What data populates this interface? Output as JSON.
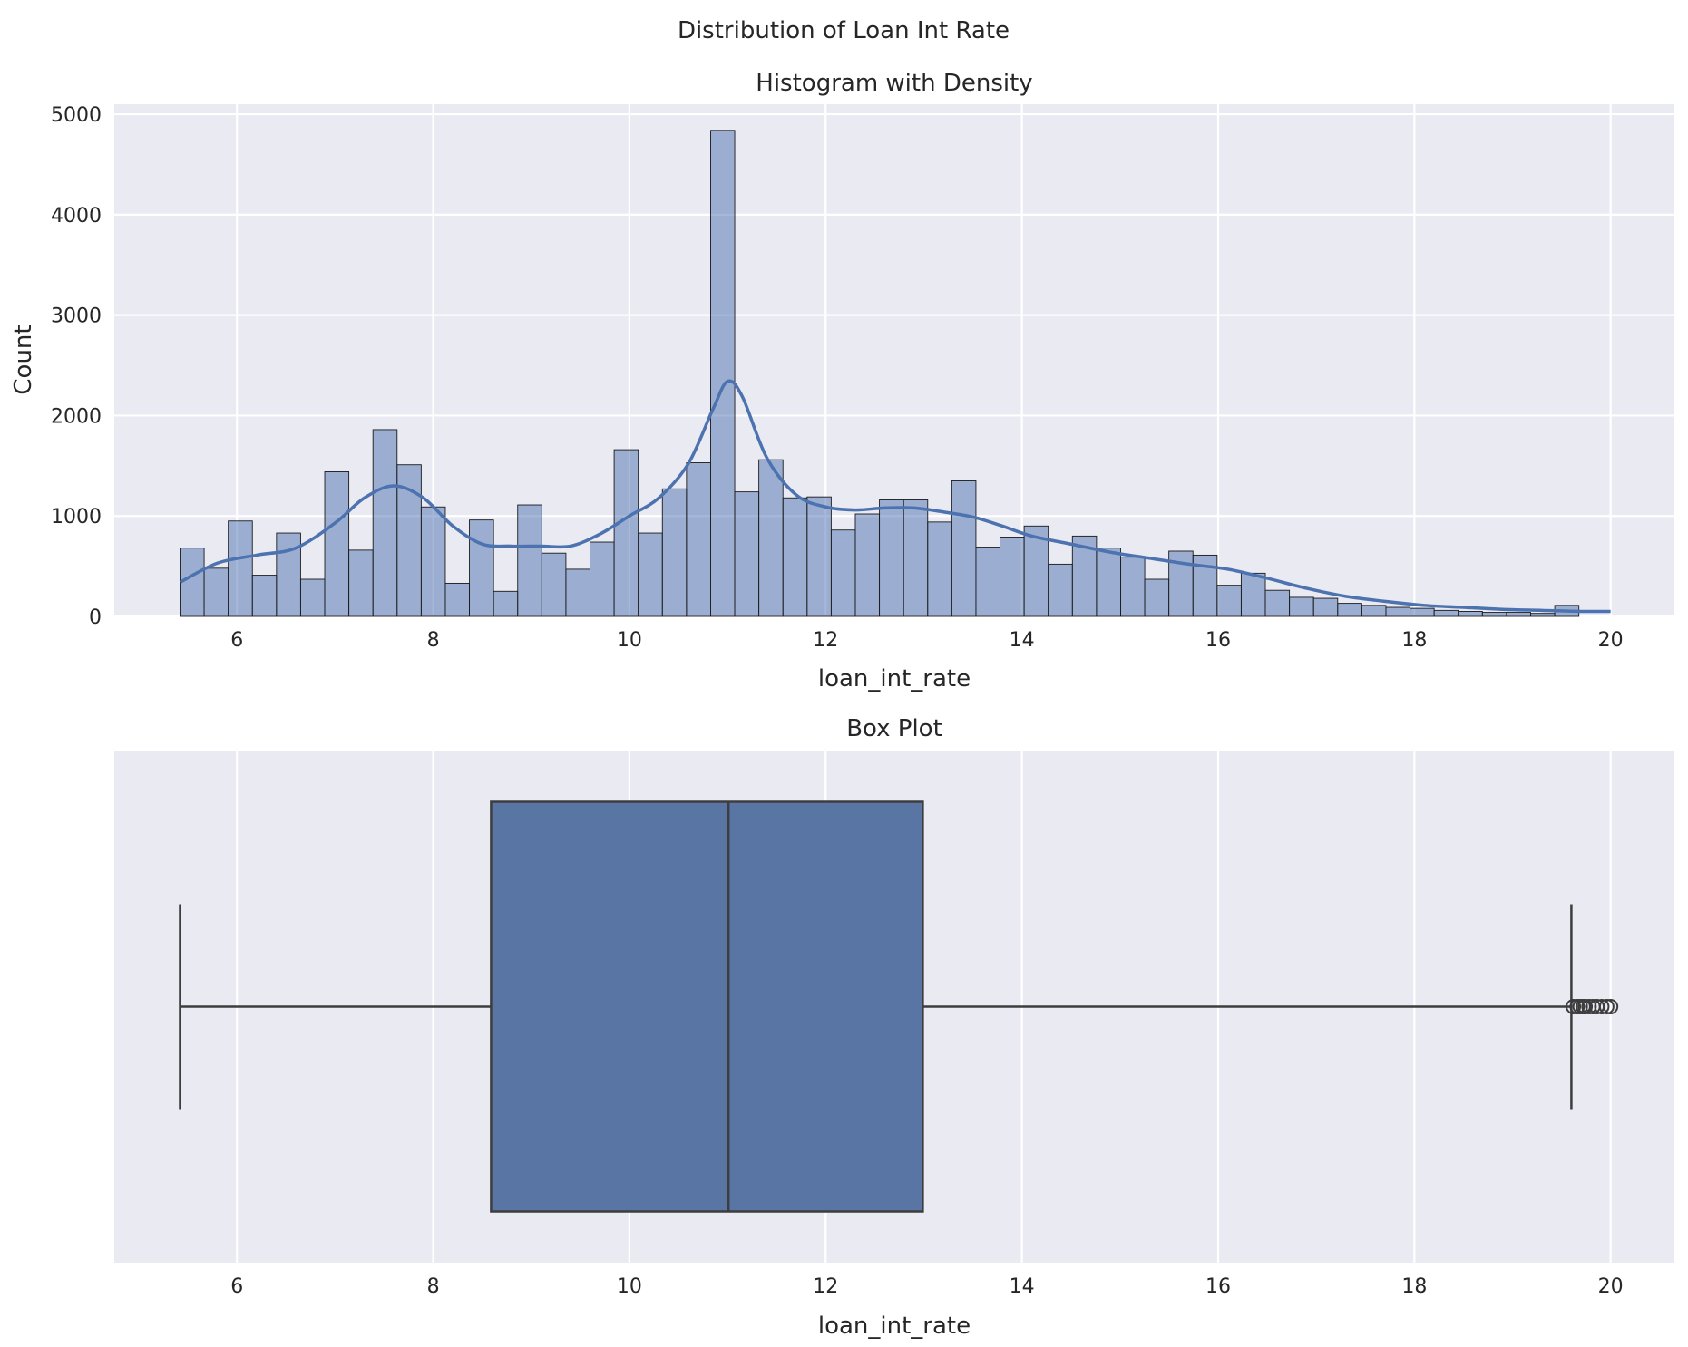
{
  "figure": {
    "suptitle": "Distribution of Loan Int Rate"
  },
  "chart_data": [
    {
      "type": "bar",
      "title": "Histogram with Density",
      "xlabel": "loan_int_rate",
      "ylabel": "Count",
      "xlim": [
        4.75,
        20.65
      ],
      "ylim": [
        0,
        5100
      ],
      "xticks": [
        6,
        8,
        10,
        12,
        14,
        16,
        18,
        20
      ],
      "yticks": [
        0,
        1000,
        2000,
        3000,
        4000,
        5000
      ],
      "grid": true,
      "bin_start": 5.42,
      "bin_width": 0.2458,
      "values": [
        680,
        480,
        950,
        410,
        830,
        370,
        1440,
        660,
        1860,
        1510,
        1090,
        330,
        960,
        250,
        1110,
        630,
        470,
        740,
        1660,
        830,
        1270,
        1530,
        4840,
        1240,
        1560,
        1180,
        1190,
        860,
        1020,
        1160,
        1160,
        940,
        1350,
        690,
        790,
        900,
        520,
        800,
        680,
        590,
        370,
        650,
        610,
        310,
        430,
        260,
        190,
        180,
        130,
        110,
        90,
        80,
        60,
        50,
        40,
        40,
        30,
        110
      ],
      "density_curve": {
        "x": [
          5.42,
          5.8,
          6.2,
          6.6,
          7.0,
          7.3,
          7.6,
          7.9,
          8.2,
          8.5,
          8.8,
          9.1,
          9.4,
          9.7,
          10.0,
          10.3,
          10.6,
          10.85,
          11.0,
          11.15,
          11.4,
          11.7,
          12.0,
          12.3,
          12.6,
          12.9,
          13.2,
          13.5,
          13.8,
          14.1,
          14.5,
          14.9,
          15.3,
          15.7,
          16.1,
          16.5,
          16.9,
          17.3,
          17.7,
          18.1,
          18.5,
          18.9,
          19.3,
          19.7,
          20.0
        ],
        "y": [
          340,
          530,
          610,
          680,
          930,
          1180,
          1300,
          1180,
          900,
          720,
          700,
          700,
          700,
          820,
          1000,
          1180,
          1520,
          2060,
          2340,
          2190,
          1580,
          1210,
          1090,
          1060,
          1080,
          1080,
          1040,
          990,
          900,
          800,
          720,
          640,
          580,
          520,
          470,
          380,
          280,
          200,
          150,
          110,
          90,
          70,
          60,
          50,
          50
        ]
      },
      "colors": {
        "bar": "#4c72b0",
        "curve": "#4c72b0"
      }
    },
    {
      "type": "box",
      "title": "Box Plot",
      "xlabel": "loan_int_rate",
      "xlim": [
        4.75,
        20.65
      ],
      "xticks": [
        6,
        8,
        10,
        12,
        14,
        16,
        18,
        20
      ],
      "grid": true,
      "stats": {
        "whislo": 5.42,
        "q1": 8.59,
        "median": 11.01,
        "q3": 12.99,
        "whishi": 19.6
      },
      "outliers": [
        19.62,
        19.66,
        19.69,
        19.72,
        19.74,
        19.78,
        19.82,
        19.86,
        19.91,
        19.96,
        20.0
      ],
      "colors": {
        "box": "#5975a4",
        "line": "#3d3d3d"
      }
    }
  ]
}
